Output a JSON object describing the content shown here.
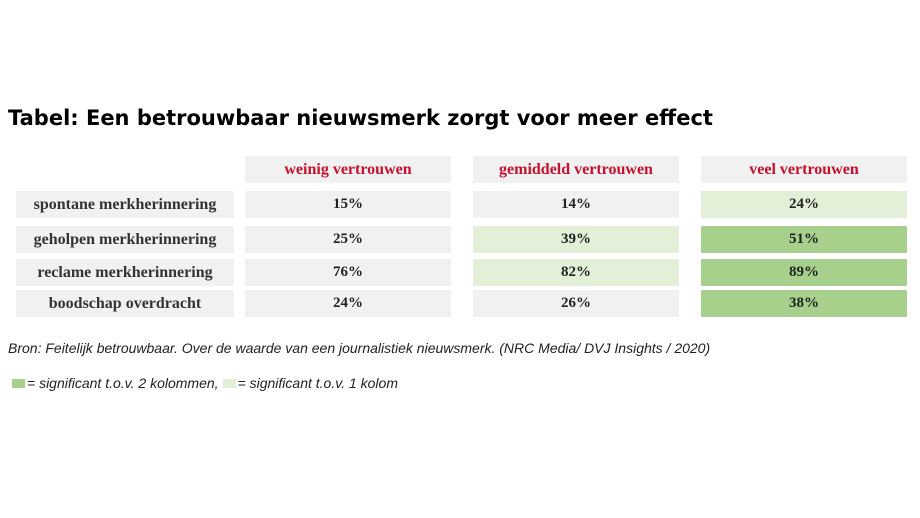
{
  "title": "Tabel: Een betrouwbaar nieuwsmerk zorgt voor meer effect",
  "colors": {
    "header_text": "#c8102e",
    "neutral_cell": "#f1f1f1",
    "light_green": "#e3f0d8",
    "dark_green": "#a6d08b"
  },
  "chart_data": {
    "type": "table",
    "columns": [
      "weinig vertrouwen",
      "gemiddeld vertrouwen",
      "veel vertrouwen"
    ],
    "rows": [
      {
        "label": "spontane merkherinnering",
        "values": [
          "15%",
          "14%",
          "24%"
        ],
        "significance": [
          "none",
          "none",
          "1"
        ]
      },
      {
        "label": "geholpen merkherinnering",
        "values": [
          "25%",
          "39%",
          "51%"
        ],
        "significance": [
          "none",
          "1",
          "2"
        ]
      },
      {
        "label": "reclame merkherinnering",
        "values": [
          "76%",
          "82%",
          "89%"
        ],
        "significance": [
          "none",
          "1",
          "2"
        ]
      },
      {
        "label": "boodschap overdracht",
        "values": [
          "24%",
          "26%",
          "38%"
        ],
        "significance": [
          "none",
          "none",
          "2"
        ]
      }
    ]
  },
  "source": "Bron: Feitelijk betrouwbaar. Over de waarde van een journalistiek nieuwsmerk. (NRC Media/ DVJ Insights / 2020)",
  "legend": {
    "dark_label": "= significant t.o.v. 2 kolommen,",
    "light_label": "= significant t.o.v. 1 kolom"
  }
}
